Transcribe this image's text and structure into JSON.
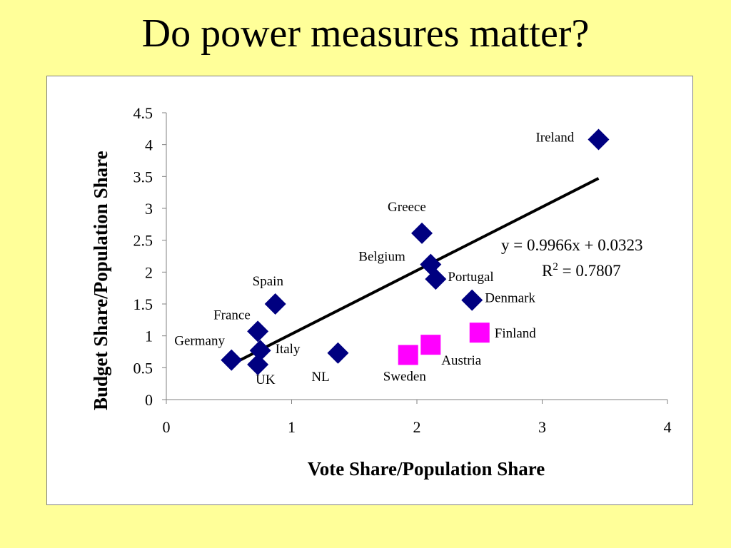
{
  "slide": {
    "title": "Do power measures matter?"
  },
  "chart_data": {
    "type": "scatter",
    "title": "",
    "xlabel": "Vote Share/Population Share",
    "ylabel": "Budget Share/Population Share",
    "xlim": [
      0,
      4
    ],
    "ylim": [
      0,
      4.5
    ],
    "xticks": [
      "0",
      "1",
      "2",
      "3",
      "4"
    ],
    "yticks": [
      "0",
      "0.5",
      "1",
      "1.5",
      "2",
      "2.5",
      "3",
      "3.5",
      "4",
      "4.5"
    ],
    "grid": false,
    "legend": "none",
    "series": [
      {
        "marker": "diamond",
        "color": "#000080",
        "points": [
          {
            "label": "Ireland",
            "x": 3.45,
            "y": 4.08
          },
          {
            "label": "Greece",
            "x": 2.04,
            "y": 2.61
          },
          {
            "label": "Belgium",
            "x": 2.11,
            "y": 2.12
          },
          {
            "label": "Portugal",
            "x": 2.15,
            "y": 1.89
          },
          {
            "label": "Denmark",
            "x": 2.44,
            "y": 1.56
          },
          {
            "label": "Spain",
            "x": 0.87,
            "y": 1.5
          },
          {
            "label": "France",
            "x": 0.73,
            "y": 1.07
          },
          {
            "label": "Italy",
            "x": 0.75,
            "y": 0.77
          },
          {
            "label": "Germany",
            "x": 0.52,
            "y": 0.62
          },
          {
            "label": "UK",
            "x": 0.73,
            "y": 0.55
          },
          {
            "label": "NL",
            "x": 1.37,
            "y": 0.73
          }
        ]
      },
      {
        "marker": "square",
        "color": "#FF00FF",
        "points": [
          {
            "label": "Finland",
            "x": 2.5,
            "y": 1.05
          },
          {
            "label": "Austria",
            "x": 2.11,
            "y": 0.86
          },
          {
            "label": "Sweden",
            "x": 1.93,
            "y": 0.7
          }
        ]
      }
    ],
    "trendline": {
      "slope": 0.9966,
      "intercept": 0.0323,
      "x_range": [
        0.52,
        3.45
      ],
      "equation": "y = 0.9966x + 0.0323",
      "r2_label": "R",
      "r2_sup": "2",
      "r2_value": " = 0.7807"
    }
  }
}
